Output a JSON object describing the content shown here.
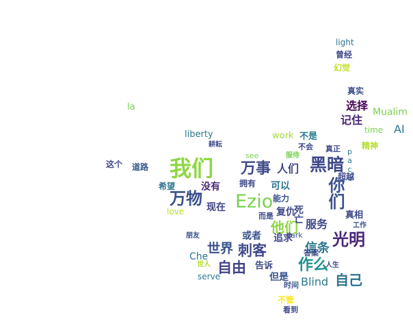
{
  "words": [
    {
      "text": "我们",
      "color": "#8fd744"
    },
    {
      "text": "Ezio",
      "color": "#7ad151"
    },
    {
      "text": "万物",
      "color": "#3b528b"
    },
    {
      "text": "万事",
      "color": "#3e4989"
    },
    {
      "text": "黑暗",
      "color": "#3e4989"
    },
    {
      "text": "你们",
      "color": "#3b528b"
    },
    {
      "text": "光明",
      "color": "#482677"
    },
    {
      "text": "作么",
      "color": "#21918c"
    },
    {
      "text": "自己",
      "color": "#2c728e"
    },
    {
      "text": "世界",
      "color": "#3b528b"
    },
    {
      "text": "刺客",
      "color": "#3e4989"
    },
    {
      "text": "自由",
      "color": "#414487"
    },
    {
      "text": "信条",
      "color": "#2a788e"
    },
    {
      "text": "他们",
      "color": "#90d743"
    },
    {
      "text": "服务",
      "color": "#3e4989"
    },
    {
      "text": "人们",
      "color": "#404688"
    },
    {
      "text": "Blind",
      "color": "#2a788e"
    },
    {
      "text": "Mualim",
      "color": "#7ad151"
    },
    {
      "text": "AI",
      "color": "#2a788e"
    },
    {
      "text": "选择",
      "color": "#440154"
    },
    {
      "text": "记住",
      "color": "#482677"
    },
    {
      "text": "真实",
      "color": "#3b528b"
    },
    {
      "text": "幻觉",
      "color": "#c2df23"
    },
    {
      "text": "曾经",
      "color": "#3e4989"
    },
    {
      "text": "light",
      "color": "#2a788e"
    },
    {
      "text": "不是",
      "color": "#287c8e"
    },
    {
      "text": "work",
      "color": "#a5db36"
    },
    {
      "text": "liberty",
      "color": "#2a788e"
    },
    {
      "text": "la",
      "color": "#7ad151"
    },
    {
      "text": "这个",
      "color": "#3e4989"
    },
    {
      "text": "道路",
      "color": "#38588c"
    },
    {
      "text": "希望",
      "color": "#2c728e"
    },
    {
      "text": "没有",
      "color": "#482878"
    },
    {
      "text": "拥有",
      "color": "#3e4989"
    },
    {
      "text": "可以",
      "color": "#2c728e"
    },
    {
      "text": "现在",
      "color": "#414487"
    },
    {
      "text": "能力",
      "color": "#3b528b"
    },
    {
      "text": "love",
      "color": "#b5de2b"
    },
    {
      "text": "或者",
      "color": "#3b528b"
    },
    {
      "text": "追求",
      "color": "#404688"
    },
    {
      "text": "而是",
      "color": "#3e4989"
    },
    {
      "text": "复仇",
      "color": "#3e4989"
    },
    {
      "text": "死亡",
      "color": "#3e4989"
    },
    {
      "text": "答案",
      "color": "#3e4989"
    },
    {
      "text": "告诉",
      "color": "#3e4989"
    },
    {
      "text": "但是",
      "color": "#3b528b"
    },
    {
      "text": "时间",
      "color": "#3b528b"
    },
    {
      "text": "不管",
      "color": "#fde725"
    },
    {
      "text": "看到",
      "color": "#3e4989"
    },
    {
      "text": "Che",
      "color": "#2a788e"
    },
    {
      "text": "serve",
      "color": "#2a788e"
    },
    {
      "text": "dark",
      "color": "#3b528b"
    },
    {
      "text": "真相",
      "color": "#3e4989"
    },
    {
      "text": "工作",
      "color": "#3b528b"
    },
    {
      "text": "time",
      "color": "#7ad151"
    },
    {
      "text": "pace",
      "color": "#2a788e"
    },
    {
      "text": "超越",
      "color": "#3e4989"
    },
    {
      "text": "精神",
      "color": "#b5de2b"
    },
    {
      "text": "不会",
      "color": "#3e4989"
    },
    {
      "text": "真正",
      "color": "#3e4989"
    },
    {
      "text": "朋友",
      "color": "#3b528b"
    },
    {
      "text": "人生",
      "color": "#3e4989"
    },
    {
      "text": "世人",
      "color": "#b5de2b"
    },
    {
      "text": "耕耘",
      "color": "#3e4989"
    },
    {
      "text": "see",
      "color": "#7ad151"
    },
    {
      "text": "服侍",
      "color": "#7ad151"
    }
  ]
}
